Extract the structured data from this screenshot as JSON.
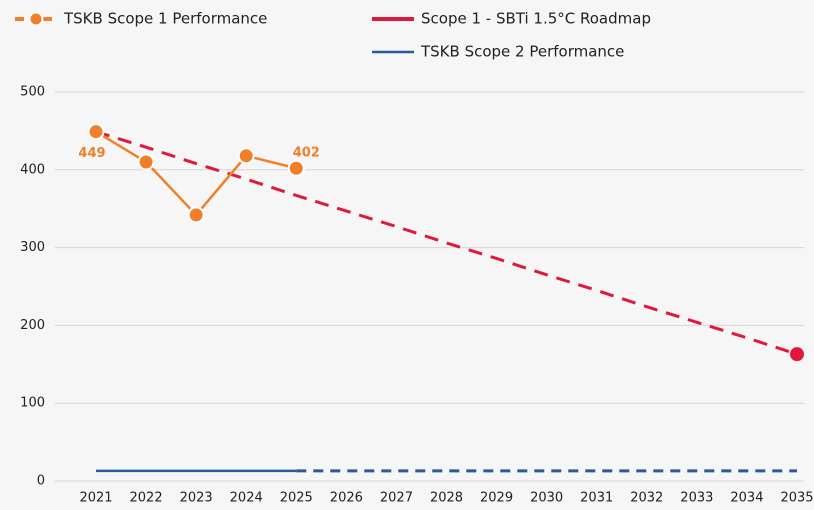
{
  "chart_data": {
    "type": "line",
    "categories": [
      "2021",
      "2022",
      "2023",
      "2024",
      "2025",
      "2026",
      "2027",
      "2028",
      "2029",
      "2030",
      "2031",
      "2032",
      "2033",
      "2034",
      "2035"
    ],
    "projection_start": "2025",
    "series": [
      {
        "name": "TSKB Scope 1 Performance",
        "color": "#f07f2a",
        "values": [
          449,
          410,
          342,
          418,
          402,
          null,
          null,
          null,
          null,
          null,
          null,
          null,
          null,
          null,
          null
        ],
        "value_labels": [
          "449",
          null,
          null,
          null,
          "402",
          null,
          null,
          null,
          null,
          null,
          null,
          null,
          null,
          null,
          null
        ]
      },
      {
        "name": "Scope 1 - SBTi 1.5°C Roadmap",
        "color": "#e0193c",
        "values": [
          449,
          429,
          408,
          388,
          367,
          347,
          327,
          306,
          286,
          265,
          245,
          224,
          204,
          184,
          163
        ]
      },
      {
        "name": "TSKB Scope 2 Performance",
        "color": "#2a5a9a",
        "values": [
          13,
          13,
          13,
          13,
          13,
          13,
          13,
          13,
          13,
          13,
          13,
          13,
          13,
          13,
          13
        ]
      }
    ],
    "ylim": [
      0,
      500
    ],
    "yticks": [
      0,
      100,
      200,
      300,
      400,
      500
    ],
    "grid": true
  }
}
